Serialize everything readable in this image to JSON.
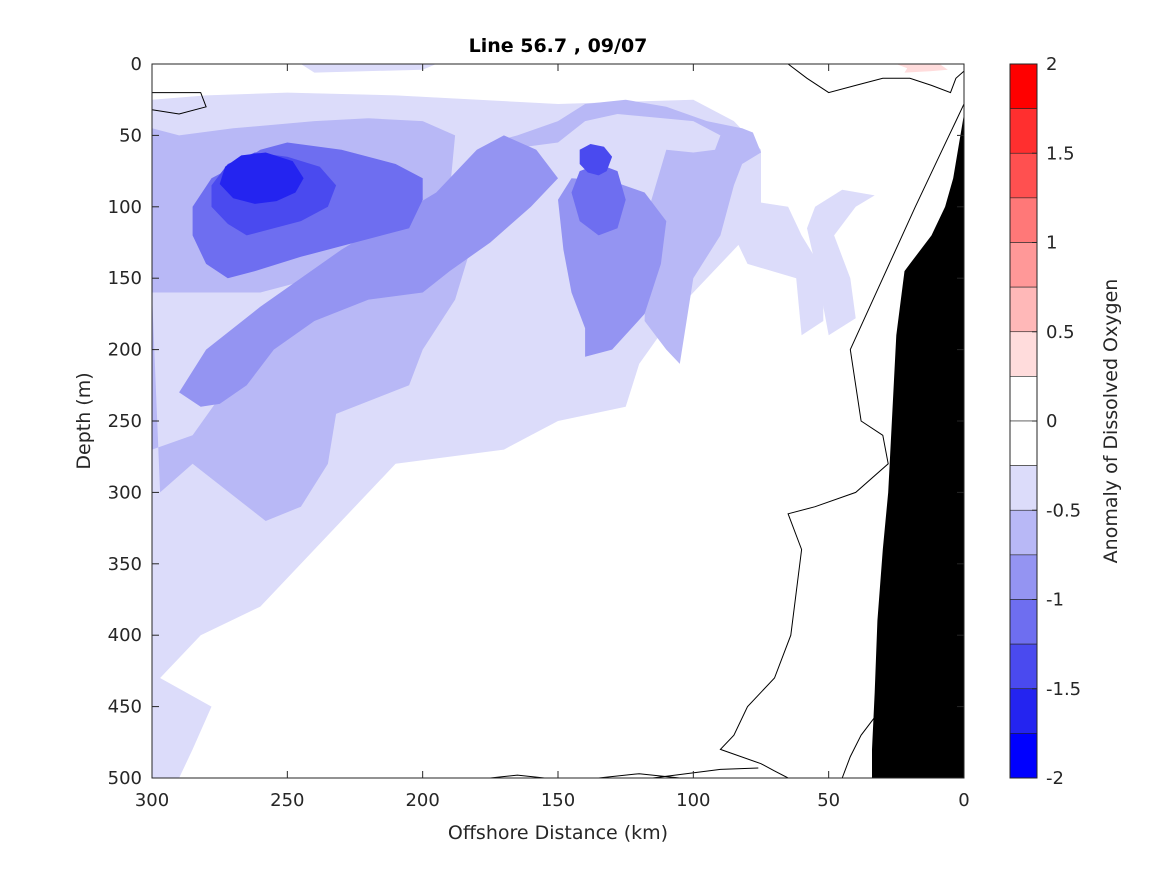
{
  "chart_data": {
    "type": "contour",
    "title": "Line 56.7 , 09/07",
    "xlabel": "Offshore Distance (km)",
    "ylabel": "Depth (m)",
    "xlim": [
      300,
      0
    ],
    "ylim": [
      500,
      0
    ],
    "x_reversed": true,
    "y_reversed": true,
    "xticks": [
      300,
      250,
      200,
      150,
      100,
      50,
      0
    ],
    "yticks": [
      0,
      50,
      100,
      150,
      200,
      250,
      300,
      350,
      400,
      450,
      500
    ],
    "colorbar": {
      "label": "Anomaly of Dissolved Oxygen",
      "limits": [
        -2,
        2
      ],
      "tick_values": [
        2,
        1.5,
        1,
        0.5,
        0,
        -0.5,
        -1,
        -1.5,
        -2
      ],
      "tick_labels": [
        "2",
        "1.5",
        "1",
        "0.5",
        "0",
        "-0.5",
        "-1",
        "-1.5",
        "-2"
      ],
      "levels": [
        {
          "from": 1.75,
          "to": 2.0,
          "color": "#ff0000"
        },
        {
          "from": 1.5,
          "to": 1.75,
          "color": "#ff2f2f"
        },
        {
          "from": 1.25,
          "to": 1.5,
          "color": "#ff5050"
        },
        {
          "from": 1.0,
          "to": 1.25,
          "color": "#ff7878"
        },
        {
          "from": 0.75,
          "to": 1.0,
          "color": "#ff9898"
        },
        {
          "from": 0.5,
          "to": 0.75,
          "color": "#ffb8b8"
        },
        {
          "from": 0.25,
          "to": 0.5,
          "color": "#ffdcdc"
        },
        {
          "from": 0.0,
          "to": 0.25,
          "color": "#ffffff"
        },
        {
          "from": -0.25,
          "to": 0.0,
          "color": "#ffffff"
        },
        {
          "from": -0.5,
          "to": -0.25,
          "color": "#dcdcfa"
        },
        {
          "from": -0.75,
          "to": -0.5,
          "color": "#b8b8f6"
        },
        {
          "from": -1.0,
          "to": -0.75,
          "color": "#9494f2"
        },
        {
          "from": -1.25,
          "to": -1.0,
          "color": "#6e6ef0"
        },
        {
          "from": -1.5,
          "to": -1.25,
          "color": "#4a4aef"
        },
        {
          "from": -1.75,
          "to": -1.5,
          "color": "#2424f0"
        },
        {
          "from": -2.0,
          "to": -1.75,
          "color": "#0000ff"
        }
      ]
    },
    "contours": [
      {
        "level": -0.25,
        "color": "#dcdcfa",
        "polygons": [
          [
            [
              297,
              430
            ],
            [
              282,
              400
            ],
            [
              260,
              380
            ],
            [
              210,
              280
            ],
            [
              170,
              270
            ],
            [
              160,
              260
            ],
            [
              150,
              250
            ],
            [
              125,
              240
            ],
            [
              120,
              210
            ],
            [
              105,
              170
            ],
            [
              80,
              120
            ],
            [
              75,
              100
            ],
            [
              75,
              60
            ],
            [
              85,
              40
            ],
            [
              100,
              25
            ],
            [
              150,
              28
            ],
            [
              210,
              22
            ],
            [
              250,
              20
            ],
            [
              280,
              22
            ],
            [
              300,
              25
            ],
            [
              300,
              500
            ],
            [
              290,
              500
            ],
            [
              285,
              480
            ],
            [
              278,
              450
            ]
          ],
          [
            [
              60,
              190
            ],
            [
              52,
              180
            ],
            [
              52,
              145
            ],
            [
              60,
              120
            ],
            [
              65,
              100
            ],
            [
              82,
              95
            ],
            [
              85,
              120
            ],
            [
              80,
              140
            ],
            [
              62,
              150
            ]
          ],
          [
            [
              50,
              190
            ],
            [
              40,
              178
            ],
            [
              42,
              150
            ],
            [
              48,
              120
            ],
            [
              40,
              100
            ],
            [
              33,
              92
            ],
            [
              45,
              88
            ],
            [
              55,
              100
            ],
            [
              58,
              115
            ],
            [
              55,
              140
            ],
            [
              52,
              170
            ]
          ],
          [
            [
              240,
              6
            ],
            [
              200,
              4
            ],
            [
              195,
              0
            ],
            [
              245,
              0
            ]
          ]
        ]
      },
      {
        "level": -0.5,
        "color": "#b8b8f6",
        "polygons": [
          [
            [
              297,
              300
            ],
            [
              285,
              280
            ],
            [
              258,
              320
            ],
            [
              245,
              310
            ],
            [
              235,
              280
            ],
            [
              232,
              245
            ],
            [
              205,
              225
            ],
            [
              200,
              200
            ],
            [
              188,
              165
            ],
            [
              180,
              115
            ],
            [
              178,
              85
            ],
            [
              170,
              60
            ],
            [
              150,
              55
            ],
            [
              140,
              40
            ],
            [
              128,
              35
            ],
            [
              100,
              40
            ],
            [
              90,
              50
            ],
            [
              92,
              60
            ],
            [
              100,
              62
            ],
            [
              110,
              60
            ],
            [
              117,
              105
            ],
            [
              118,
              180
            ],
            [
              110,
              200
            ],
            [
              105,
              210
            ],
            [
              100,
              150
            ],
            [
              90,
              120
            ],
            [
              85,
              85
            ],
            [
              82,
              70
            ],
            [
              75,
              62
            ],
            [
              78,
              48
            ],
            [
              82,
              45
            ],
            [
              95,
              40
            ],
            [
              110,
              30
            ],
            [
              125,
              25
            ],
            [
              140,
              28
            ],
            [
              150,
              40
            ],
            [
              165,
              50
            ],
            [
              175,
              55
            ],
            [
              178,
              75
            ],
            [
              185,
              100
            ],
            [
              210,
              140
            ],
            [
              235,
              160
            ],
            [
              262,
              200
            ],
            [
              270,
              220
            ],
            [
              285,
              260
            ],
            [
              300,
              270
            ],
            [
              300,
              45
            ],
            [
              290,
              50
            ],
            [
              270,
              45
            ],
            [
              240,
              40
            ],
            [
              220,
              38
            ],
            [
              200,
              40
            ],
            [
              188,
              50
            ],
            [
              190,
              90
            ],
            [
              200,
              120
            ],
            [
              220,
              140
            ],
            [
              240,
              150
            ],
            [
              260,
              160
            ],
            [
              280,
              160
            ],
            [
              300,
              160
            ]
          ]
        ]
      },
      {
        "level": -0.75,
        "color": "#9494f2",
        "polygons": [
          [
            [
              282,
              240
            ],
            [
              275,
              238
            ],
            [
              265,
              225
            ],
            [
              255,
              200
            ],
            [
              240,
              180
            ],
            [
              220,
              165
            ],
            [
              200,
              160
            ],
            [
              190,
              145
            ],
            [
              175,
              125
            ],
            [
              160,
              100
            ],
            [
              150,
              80
            ],
            [
              158,
              60
            ],
            [
              170,
              50
            ],
            [
              180,
              60
            ],
            [
              195,
              90
            ],
            [
              230,
              130
            ],
            [
              260,
              170
            ],
            [
              280,
              200
            ],
            [
              290,
              230
            ]
          ],
          [
            [
              140,
              205
            ],
            [
              130,
              200
            ],
            [
              118,
              175
            ],
            [
              112,
              140
            ],
            [
              110,
              110
            ],
            [
              118,
              90
            ],
            [
              130,
              82
            ],
            [
              145,
              80
            ],
            [
              150,
              95
            ],
            [
              148,
              130
            ],
            [
              145,
              160
            ],
            [
              140,
              185
            ]
          ]
        ]
      },
      {
        "level": -1.0,
        "color": "#6e6ef0",
        "polygons": [
          [
            [
              272,
              150
            ],
            [
              262,
              145
            ],
            [
              245,
              135
            ],
            [
              225,
              125
            ],
            [
              205,
              115
            ],
            [
              200,
              95
            ],
            [
              200,
              80
            ],
            [
              210,
              70
            ],
            [
              230,
              60
            ],
            [
              250,
              55
            ],
            [
              260,
              60
            ],
            [
              268,
              70
            ],
            [
              278,
              80
            ],
            [
              285,
              100
            ],
            [
              285,
              120
            ],
            [
              280,
              140
            ]
          ],
          [
            [
              135,
              120
            ],
            [
              128,
              115
            ],
            [
              125,
              95
            ],
            [
              128,
              75
            ],
            [
              135,
              70
            ],
            [
              142,
              75
            ],
            [
              145,
              90
            ],
            [
              142,
              110
            ]
          ]
        ]
      },
      {
        "level": -1.25,
        "color": "#4a4aef",
        "polygons": [
          [
            [
              265,
              120
            ],
            [
              255,
              115
            ],
            [
              245,
              110
            ],
            [
              235,
              100
            ],
            [
              232,
              85
            ],
            [
              238,
              72
            ],
            [
              250,
              65
            ],
            [
              262,
              62
            ],
            [
              272,
              70
            ],
            [
              278,
              85
            ],
            [
              278,
              100
            ],
            [
              272,
              112
            ]
          ],
          [
            [
              135,
              78
            ],
            [
              132,
              75
            ],
            [
              130,
              65
            ],
            [
              133,
              58
            ],
            [
              138,
              56
            ],
            [
              142,
              60
            ],
            [
              142,
              70
            ],
            [
              139,
              76
            ]
          ]
        ]
      },
      {
        "level": -1.5,
        "color": "#2424f0",
        "polygons": [
          [
            [
              262,
              98
            ],
            [
              254,
              96
            ],
            [
              247,
              90
            ],
            [
              244,
              80
            ],
            [
              248,
              68
            ],
            [
              258,
              62
            ],
            [
              267,
              64
            ],
            [
              273,
              72
            ],
            [
              275,
              84
            ],
            [
              270,
              94
            ]
          ]
        ]
      },
      {
        "level": 0.25,
        "color": "#ffdcdc",
        "polygons": [
          [
            [
              22,
              6
            ],
            [
              12,
              5
            ],
            [
              6,
              4
            ],
            [
              9,
              0
            ],
            [
              25,
              0
            ],
            [
              21,
              3
            ]
          ]
        ]
      }
    ],
    "zero_contour_lines": [
      [
        [
          300,
          20
        ],
        [
          282,
          20
        ],
        [
          280,
          30
        ],
        [
          290,
          35
        ],
        [
          300,
          32
        ]
      ],
      [
        [
          65,
          0
        ],
        [
          58,
          10
        ],
        [
          50,
          20
        ],
        [
          40,
          15
        ],
        [
          30,
          10
        ],
        [
          20,
          10
        ],
        [
          12,
          15
        ],
        [
          5,
          20
        ],
        [
          3,
          10
        ],
        [
          0,
          5
        ]
      ],
      [
        [
          0,
          28
        ],
        [
          3,
          40
        ],
        [
          8,
          60
        ],
        [
          18,
          100
        ],
        [
          30,
          150
        ],
        [
          42,
          200
        ],
        [
          38,
          250
        ],
        [
          30,
          260
        ],
        [
          28,
          280
        ],
        [
          40,
          300
        ],
        [
          55,
          310
        ],
        [
          65,
          315
        ],
        [
          60,
          340
        ],
        [
          62,
          370
        ],
        [
          64,
          400
        ],
        [
          70,
          430
        ],
        [
          75,
          440
        ],
        [
          80,
          450
        ],
        [
          85,
          470
        ],
        [
          90,
          480
        ],
        [
          75,
          490
        ],
        [
          70,
          495
        ],
        [
          65,
          500
        ]
      ],
      [
        [
          175,
          500
        ],
        [
          165,
          498
        ],
        [
          155,
          500
        ]
      ],
      [
        [
          135,
          500
        ],
        [
          120,
          497
        ],
        [
          105,
          500
        ]
      ],
      [
        [
          115,
          500
        ],
        [
          90,
          494
        ],
        [
          76,
          493
        ]
      ],
      [
        [
          45,
          500
        ],
        [
          42,
          485
        ],
        [
          38,
          470
        ],
        [
          32,
          455
        ],
        [
          28,
          440
        ]
      ]
    ],
    "land_mask": {
      "color": "#000000",
      "polygon": [
        [
          0,
          35
        ],
        [
          4,
          80
        ],
        [
          7,
          100
        ],
        [
          12,
          120
        ],
        [
          20,
          140
        ],
        [
          22,
          145
        ],
        [
          25,
          190
        ],
        [
          28,
          300
        ],
        [
          30,
          340
        ],
        [
          32,
          390
        ],
        [
          33,
          440
        ],
        [
          34,
          480
        ],
        [
          34,
          500
        ],
        [
          0,
          500
        ]
      ]
    },
    "grid": false
  }
}
